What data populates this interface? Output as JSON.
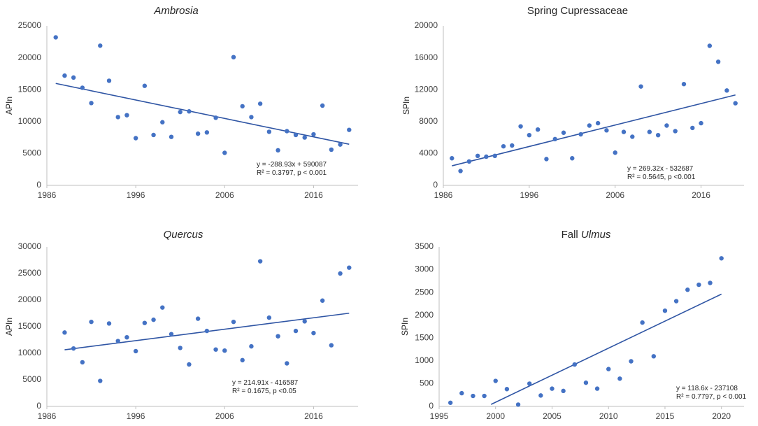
{
  "chart_data": [
    {
      "type": "scatter",
      "title_parts": [
        {
          "text": "Ambrosia",
          "italic": true
        }
      ],
      "xlabel": "",
      "ylabel": "APIn",
      "xlim": [
        1986,
        2021
      ],
      "ylim": [
        0,
        25000
      ],
      "xticks": [
        1986,
        1996,
        2006,
        2016
      ],
      "yticks": [
        0,
        5000,
        10000,
        15000,
        20000,
        25000
      ],
      "x": [
        1987,
        1988,
        1989,
        1990,
        1991,
        1992,
        1993,
        1994,
        1995,
        1996,
        1997,
        1998,
        1999,
        2000,
        2001,
        2002,
        2003,
        2004,
        2005,
        2006,
        2007,
        2008,
        2009,
        2010,
        2011,
        2012,
        2013,
        2014,
        2015,
        2016,
        2017,
        2018,
        2019,
        2020
      ],
      "y": [
        23200,
        17200,
        16900,
        15300,
        12900,
        21900,
        16400,
        10700,
        11000,
        7400,
        15600,
        7900,
        9900,
        7600,
        11500,
        11600,
        8100,
        8300,
        10600,
        5100,
        20100,
        12400,
        10700,
        12800,
        8400,
        5500,
        8500,
        7900,
        7500,
        8000,
        12500,
        5600,
        6400,
        8700
      ],
      "trendline": {
        "x": [
          1987,
          2020
        ],
        "slope": -288.93,
        "intercept": 590087
      },
      "annotation": [
        "y = -288.93x + 590087",
        "R² = 0.3797, p < 0.001"
      ]
    },
    {
      "type": "scatter",
      "title_parts": [
        {
          "text": "Spring Cupressaceae",
          "italic": false
        }
      ],
      "xlabel": "",
      "ylabel": "SPIn",
      "xlim": [
        1986,
        2021
      ],
      "ylim": [
        0,
        20000
      ],
      "xticks": [
        1986,
        1996,
        2006,
        2016
      ],
      "yticks": [
        0,
        4000,
        8000,
        12000,
        16000,
        20000
      ],
      "x": [
        1987,
        1988,
        1989,
        1990,
        1991,
        1992,
        1993,
        1994,
        1995,
        1996,
        1997,
        1998,
        1999,
        2000,
        2001,
        2002,
        2003,
        2004,
        2005,
        2006,
        2007,
        2008,
        2009,
        2010,
        2011,
        2012,
        2013,
        2014,
        2015,
        2016,
        2017,
        2018,
        2019,
        2020
      ],
      "y": [
        3400,
        1800,
        3000,
        3700,
        3600,
        3700,
        4900,
        5000,
        7400,
        6300,
        7000,
        3300,
        5800,
        6600,
        3400,
        6400,
        7500,
        7800,
        6900,
        4100,
        6700,
        6100,
        12400,
        6700,
        6300,
        7500,
        6800,
        12700,
        7200,
        7800,
        17500,
        15500,
        11900,
        10300
      ],
      "trendline": {
        "x": [
          1987,
          2020
        ],
        "slope": 269.32,
        "intercept": -532687
      },
      "annotation": [
        "y = 269.32x - 532687",
        "R² = 0.5645,  p <0.001"
      ]
    },
    {
      "type": "scatter",
      "title_parts": [
        {
          "text": "Quercus",
          "italic": true
        }
      ],
      "xlabel": "",
      "ylabel": "APIn",
      "xlim": [
        1986,
        2021
      ],
      "ylim": [
        0,
        30000
      ],
      "xticks": [
        1986,
        1996,
        2006,
        2016
      ],
      "yticks": [
        0,
        5000,
        10000,
        15000,
        20000,
        25000,
        30000
      ],
      "x": [
        1988,
        1989,
        1990,
        1991,
        1992,
        1993,
        1994,
        1995,
        1996,
        1997,
        1998,
        1999,
        2000,
        2001,
        2002,
        2003,
        2004,
        2005,
        2006,
        2007,
        2008,
        2009,
        2010,
        2011,
        2012,
        2013,
        2014,
        2015,
        2016,
        2017,
        2018,
        2019,
        2020
      ],
      "y": [
        13900,
        10900,
        8300,
        15900,
        4800,
        15600,
        12300,
        13000,
        10400,
        15700,
        16300,
        18600,
        13600,
        11000,
        7900,
        16500,
        14200,
        10700,
        10500,
        15900,
        8700,
        11300,
        27300,
        16700,
        13200,
        8100,
        14200,
        16000,
        13800,
        19900,
        11500,
        25000,
        26100
      ],
      "trendline": {
        "x": [
          1988,
          2020
        ],
        "slope": 214.91,
        "intercept": -416587
      },
      "annotation": [
        "y = 214.91x - 416587",
        "R² = 0.1675, p <0.05"
      ]
    },
    {
      "type": "scatter",
      "title_parts": [
        {
          "text": "Fall ",
          "italic": false
        },
        {
          "text": "Ulmus",
          "italic": true
        }
      ],
      "xlabel": "",
      "ylabel": "SPIn",
      "xlim": [
        1995,
        2022
      ],
      "ylim": [
        0,
        3500
      ],
      "xticks": [
        1995,
        2000,
        2005,
        2010,
        2015,
        2020
      ],
      "yticks": [
        0,
        500,
        1000,
        1500,
        2000,
        2500,
        3000,
        3500
      ],
      "x": [
        1996,
        1997,
        1998,
        1999,
        2000,
        2001,
        2002,
        2003,
        2004,
        2005,
        2006,
        2007,
        2008,
        2009,
        2010,
        2011,
        2012,
        2013,
        2014,
        2015,
        2016,
        2017,
        2018,
        2019,
        2020
      ],
      "y": [
        80,
        290,
        230,
        230,
        560,
        380,
        40,
        500,
        240,
        390,
        340,
        920,
        520,
        390,
        820,
        610,
        990,
        1840,
        1100,
        2100,
        2310,
        2560,
        2670,
        2710,
        3250
      ],
      "trendline": {
        "x": [
          1999.6,
          2020
        ],
        "slope": 118.6,
        "intercept": -237108
      },
      "annotation": [
        "y = 118.6x - 237108",
        "R² = 0.7797, p < 0.001"
      ]
    }
  ],
  "colors": {
    "marker": "#4472c4",
    "trendline": "#2f55a4",
    "axis": "#bfbfbf",
    "text": "#404040"
  }
}
